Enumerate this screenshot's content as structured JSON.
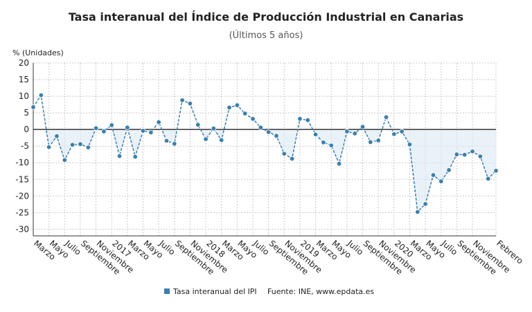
{
  "chart_data": {
    "type": "line",
    "title": "Tasa interanual del Índice de Producción Industrial en Canarias",
    "subtitle": "(Últimos 5 años)",
    "y_label": "% (Unidades)",
    "source": "Fuente: INE, www.epdata.es",
    "categories": [
      "Marzo",
      null,
      "Mayo",
      null,
      "Julio",
      null,
      "Septiembre",
      null,
      "Noviembre",
      null,
      "2017",
      null,
      "Marzo",
      null,
      "Mayo",
      null,
      "Julio",
      null,
      "Septiembre",
      null,
      "Noviembre",
      null,
      "2018",
      null,
      "Marzo",
      null,
      "Mayo",
      null,
      "Julio",
      null,
      "Septiembre",
      null,
      "Noviembre",
      null,
      "2019",
      null,
      "Marzo",
      null,
      "Mayo",
      null,
      "Julio",
      null,
      "Septiembre",
      null,
      "Noviembre",
      null,
      "2020",
      null,
      "Marzo",
      null,
      "Mayo",
      null,
      "Julio",
      null,
      "Septiembre",
      null,
      "Noviembre",
      null,
      null,
      "Febrero"
    ],
    "series": [
      {
        "name": "Tasa interanual del IPI",
        "color": "#3a7fb0",
        "values": [
          6.7,
          10.3,
          -5.3,
          -2.0,
          -9.2,
          -4.6,
          -4.4,
          -5.4,
          0.4,
          -0.6,
          1.3,
          -8.0,
          0.6,
          -8.2,
          -0.4,
          -0.9,
          2.2,
          -3.4,
          -4.3,
          8.8,
          7.8,
          1.4,
          -2.9,
          0.3,
          -3.2,
          6.6,
          7.3,
          4.8,
          3.2,
          0.6,
          -0.8,
          -1.9,
          -7.3,
          -8.8,
          3.2,
          2.8,
          -1.5,
          -3.9,
          -4.8,
          -10.3,
          -0.6,
          -1.2,
          0.8,
          -3.8,
          -3.3,
          3.7,
          -1.4,
          -0.6,
          -4.5,
          -24.8,
          -22.4,
          -13.7,
          -15.6,
          -12.2,
          -7.5,
          -7.6,
          -6.6,
          -8.1,
          -14.8,
          -12.4
        ]
      }
    ],
    "ylim": [
      -32,
      20
    ],
    "yticks": [
      20,
      15,
      10,
      5,
      0,
      -5,
      -10,
      -15,
      -20,
      -25,
      -30
    ],
    "grid": true
  }
}
